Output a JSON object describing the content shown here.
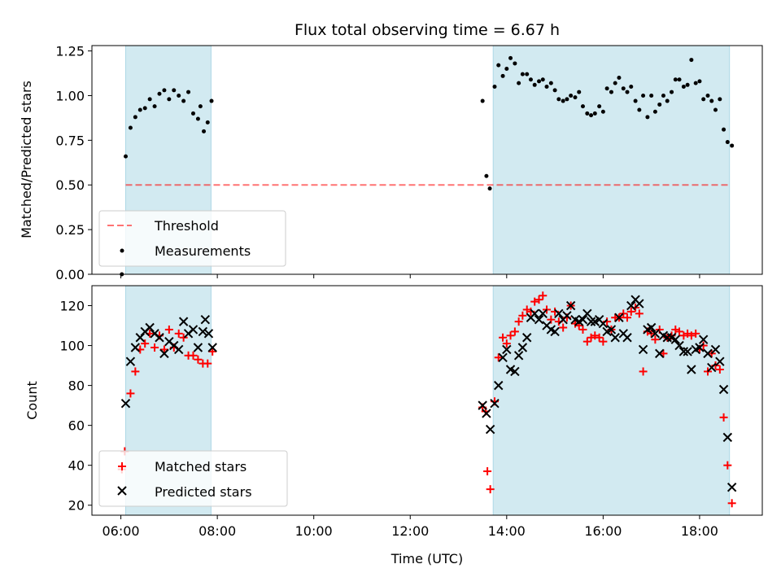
{
  "title": "Flux total observing time = 6.67 h",
  "colors": {
    "shade": "#add8e6",
    "threshold": "#ff0000",
    "measurement": "#000000",
    "matched": "#ff0000",
    "predicted": "#000000"
  },
  "chart_data": [
    {
      "type": "scatter",
      "ylabel": "Matched/Predicted stars",
      "ylim": [
        0,
        1.28
      ],
      "xlim_hours": [
        5.4,
        19.3
      ],
      "yticks": [
        0.0,
        0.25,
        0.5,
        0.75,
        1.0,
        1.25
      ],
      "ytick_labels": [
        "0.00",
        "0.25",
        "0.50",
        "0.75",
        "1.00",
        "1.25"
      ],
      "shaded_intervals_hours": [
        [
          6.1,
          7.87
        ],
        [
          13.72,
          18.62
        ]
      ],
      "threshold_value": 0.5,
      "threshold_range_hours": [
        6.1,
        18.62
      ],
      "legend": {
        "placement": "lower-left",
        "entries": [
          "Threshold",
          "Measurements"
        ]
      },
      "series": [
        {
          "name": "Measurements",
          "marker": "dot",
          "points": [
            [
              6.02,
              0.0
            ],
            [
              6.1,
              0.66
            ],
            [
              6.2,
              0.82
            ],
            [
              6.3,
              0.88
            ],
            [
              6.4,
              0.92
            ],
            [
              6.5,
              0.93
            ],
            [
              6.6,
              0.98
            ],
            [
              6.7,
              0.94
            ],
            [
              6.8,
              1.01
            ],
            [
              6.9,
              1.03
            ],
            [
              7.0,
              0.98
            ],
            [
              7.1,
              1.03
            ],
            [
              7.2,
              1.0
            ],
            [
              7.3,
              0.97
            ],
            [
              7.4,
              1.02
            ],
            [
              7.5,
              0.9
            ],
            [
              7.6,
              0.87
            ],
            [
              7.65,
              0.94
            ],
            [
              7.72,
              0.8
            ],
            [
              7.8,
              0.85
            ],
            [
              7.88,
              0.97
            ],
            [
              13.5,
              0.97
            ],
            [
              13.58,
              0.55
            ],
            [
              13.65,
              0.48
            ],
            [
              13.75,
              1.05
            ],
            [
              13.83,
              1.17
            ],
            [
              13.92,
              1.11
            ],
            [
              14.0,
              1.15
            ],
            [
              14.08,
              1.21
            ],
            [
              14.17,
              1.18
            ],
            [
              14.25,
              1.07
            ],
            [
              14.33,
              1.12
            ],
            [
              14.42,
              1.12
            ],
            [
              14.5,
              1.09
            ],
            [
              14.58,
              1.06
            ],
            [
              14.67,
              1.08
            ],
            [
              14.75,
              1.09
            ],
            [
              14.83,
              1.05
            ],
            [
              14.92,
              1.07
            ],
            [
              15.0,
              1.03
            ],
            [
              15.08,
              0.98
            ],
            [
              15.17,
              0.97
            ],
            [
              15.25,
              0.98
            ],
            [
              15.33,
              1.0
            ],
            [
              15.42,
              0.99
            ],
            [
              15.5,
              1.02
            ],
            [
              15.58,
              0.94
            ],
            [
              15.67,
              0.9
            ],
            [
              15.75,
              0.89
            ],
            [
              15.83,
              0.9
            ],
            [
              15.92,
              0.94
            ],
            [
              16.0,
              0.91
            ],
            [
              16.08,
              1.04
            ],
            [
              16.17,
              1.02
            ],
            [
              16.25,
              1.07
            ],
            [
              16.33,
              1.1
            ],
            [
              16.42,
              1.04
            ],
            [
              16.5,
              1.02
            ],
            [
              16.58,
              1.05
            ],
            [
              16.67,
              0.97
            ],
            [
              16.75,
              0.92
            ],
            [
              16.83,
              1.0
            ],
            [
              16.92,
              0.88
            ],
            [
              17.0,
              1.0
            ],
            [
              17.08,
              0.91
            ],
            [
              17.17,
              0.95
            ],
            [
              17.25,
              1.0
            ],
            [
              17.33,
              0.97
            ],
            [
              17.42,
              1.02
            ],
            [
              17.5,
              1.09
            ],
            [
              17.58,
              1.09
            ],
            [
              17.67,
              1.05
            ],
            [
              17.75,
              1.06
            ],
            [
              17.83,
              1.2
            ],
            [
              17.92,
              1.07
            ],
            [
              18.0,
              1.08
            ],
            [
              18.08,
              0.98
            ],
            [
              18.17,
              1.0
            ],
            [
              18.25,
              0.97
            ],
            [
              18.33,
              0.92
            ],
            [
              18.42,
              0.98
            ],
            [
              18.5,
              0.81
            ],
            [
              18.58,
              0.74
            ],
            [
              18.67,
              0.72
            ]
          ]
        }
      ]
    },
    {
      "type": "scatter",
      "ylabel": "Count",
      "xlabel": "Time (UTC)",
      "ylim": [
        15,
        130
      ],
      "xlim_hours": [
        5.4,
        19.3
      ],
      "yticks": [
        20,
        40,
        60,
        80,
        100,
        120
      ],
      "ytick_labels": [
        "20",
        "40",
        "60",
        "80",
        "100",
        "120"
      ],
      "xticks_hours": [
        6,
        8,
        10,
        12,
        14,
        16,
        18
      ],
      "xtick_labels": [
        "06:00",
        "08:00",
        "10:00",
        "12:00",
        "14:00",
        "16:00",
        "18:00"
      ],
      "shaded_intervals_hours": [
        [
          6.1,
          7.87
        ],
        [
          13.72,
          18.62
        ]
      ],
      "legend": {
        "placement": "lower-left",
        "entries": [
          "Matched stars",
          "Predicted stars"
        ]
      },
      "series": [
        {
          "name": "Matched stars",
          "marker": "plus",
          "points": [
            [
              6.02,
              38
            ],
            [
              6.08,
              47
            ],
            [
              6.2,
              76
            ],
            [
              6.3,
              87
            ],
            [
              6.4,
              98
            ],
            [
              6.5,
              101
            ],
            [
              6.6,
              106
            ],
            [
              6.7,
              99
            ],
            [
              6.8,
              105
            ],
            [
              6.9,
              98
            ],
            [
              7.0,
              108
            ],
            [
              7.1,
              99
            ],
            [
              7.2,
              106
            ],
            [
              7.3,
              104
            ],
            [
              7.4,
              95
            ],
            [
              7.5,
              95
            ],
            [
              7.6,
              93
            ],
            [
              7.7,
              91
            ],
            [
              7.8,
              91
            ],
            [
              7.9,
              97
            ],
            [
              13.5,
              69
            ],
            [
              13.56,
              67
            ],
            [
              13.6,
              37
            ],
            [
              13.66,
              28
            ],
            [
              13.75,
              72
            ],
            [
              13.83,
              94
            ],
            [
              13.92,
              104
            ],
            [
              14.0,
              101
            ],
            [
              14.08,
              105
            ],
            [
              14.17,
              107
            ],
            [
              14.25,
              112
            ],
            [
              14.33,
              115
            ],
            [
              14.42,
              118
            ],
            [
              14.5,
              117
            ],
            [
              14.58,
              122
            ],
            [
              14.67,
              123
            ],
            [
              14.75,
              125
            ],
            [
              14.83,
              118
            ],
            [
              14.92,
              113
            ],
            [
              15.0,
              117
            ],
            [
              15.08,
              112
            ],
            [
              15.17,
              109
            ],
            [
              15.25,
              114
            ],
            [
              15.33,
              120
            ],
            [
              15.42,
              111
            ],
            [
              15.5,
              110
            ],
            [
              15.58,
              108
            ],
            [
              15.67,
              102
            ],
            [
              15.75,
              104
            ],
            [
              15.83,
              105
            ],
            [
              15.92,
              104
            ],
            [
              16.0,
              102
            ],
            [
              16.08,
              112
            ],
            [
              16.17,
              108
            ],
            [
              16.25,
              114
            ],
            [
              16.33,
              114
            ],
            [
              16.42,
              116
            ],
            [
              16.5,
              114
            ],
            [
              16.58,
              117
            ],
            [
              16.67,
              119
            ],
            [
              16.75,
              116
            ],
            [
              16.83,
              87
            ],
            [
              16.92,
              107
            ],
            [
              17.0,
              106
            ],
            [
              17.08,
              103
            ],
            [
              17.17,
              108
            ],
            [
              17.25,
              96
            ],
            [
              17.33,
              104
            ],
            [
              17.42,
              105
            ],
            [
              17.5,
              108
            ],
            [
              17.58,
              107
            ],
            [
              17.67,
              105
            ],
            [
              17.75,
              106
            ],
            [
              17.83,
              105
            ],
            [
              17.92,
              106
            ],
            [
              18.0,
              98
            ],
            [
              18.08,
              100
            ],
            [
              18.17,
              87
            ],
            [
              18.25,
              96
            ],
            [
              18.33,
              90
            ],
            [
              18.42,
              88
            ],
            [
              18.5,
              64
            ],
            [
              18.58,
              40
            ],
            [
              18.67,
              21
            ]
          ]
        },
        {
          "name": "Predicted stars",
          "marker": "x",
          "points": [
            [
              6.1,
              71
            ],
            [
              6.2,
              92
            ],
            [
              6.3,
              99
            ],
            [
              6.4,
              104
            ],
            [
              6.5,
              107
            ],
            [
              6.6,
              109
            ],
            [
              6.7,
              106
            ],
            [
              6.8,
              104
            ],
            [
              6.9,
              96
            ],
            [
              7.0,
              102
            ],
            [
              7.1,
              100
            ],
            [
              7.2,
              98
            ],
            [
              7.3,
              112
            ],
            [
              7.4,
              106
            ],
            [
              7.5,
              108
            ],
            [
              7.6,
              99
            ],
            [
              7.7,
              107
            ],
            [
              7.75,
              113
            ],
            [
              7.82,
              106
            ],
            [
              7.9,
              99
            ],
            [
              13.5,
              70
            ],
            [
              13.58,
              66
            ],
            [
              13.66,
              58
            ],
            [
              13.75,
              71
            ],
            [
              13.83,
              80
            ],
            [
              13.92,
              94
            ],
            [
              14.0,
              98
            ],
            [
              14.08,
              88
            ],
            [
              14.17,
              87
            ],
            [
              14.25,
              95
            ],
            [
              14.33,
              99
            ],
            [
              14.42,
              104
            ],
            [
              14.5,
              114
            ],
            [
              14.58,
              116
            ],
            [
              14.67,
              113
            ],
            [
              14.75,
              116
            ],
            [
              14.83,
              110
            ],
            [
              14.92,
              108
            ],
            [
              15.0,
              107
            ],
            [
              15.08,
              116
            ],
            [
              15.17,
              113
            ],
            [
              15.25,
              115
            ],
            [
              15.33,
              120
            ],
            [
              15.42,
              113
            ],
            [
              15.5,
              112
            ],
            [
              15.58,
              113
            ],
            [
              15.67,
              116
            ],
            [
              15.75,
              112
            ],
            [
              15.83,
              112
            ],
            [
              15.92,
              113
            ],
            [
              16.0,
              111
            ],
            [
              16.08,
              107
            ],
            [
              16.17,
              108
            ],
            [
              16.25,
              104
            ],
            [
              16.33,
              114
            ],
            [
              16.42,
              106
            ],
            [
              16.5,
              104
            ],
            [
              16.58,
              120
            ],
            [
              16.67,
              123
            ],
            [
              16.75,
              121
            ],
            [
              16.83,
              98
            ],
            [
              16.92,
              108
            ],
            [
              17.0,
              109
            ],
            [
              17.08,
              106
            ],
            [
              17.17,
              96
            ],
            [
              17.25,
              105
            ],
            [
              17.33,
              104
            ],
            [
              17.42,
              104
            ],
            [
              17.5,
              103
            ],
            [
              17.58,
              100
            ],
            [
              17.67,
              97
            ],
            [
              17.75,
              97
            ],
            [
              17.83,
              88
            ],
            [
              17.92,
              98
            ],
            [
              18.0,
              99
            ],
            [
              18.08,
              103
            ],
            [
              18.17,
              96
            ],
            [
              18.25,
              89
            ],
            [
              18.33,
              98
            ],
            [
              18.42,
              92
            ],
            [
              18.5,
              78
            ],
            [
              18.58,
              54
            ],
            [
              18.67,
              29
            ]
          ]
        }
      ]
    }
  ]
}
